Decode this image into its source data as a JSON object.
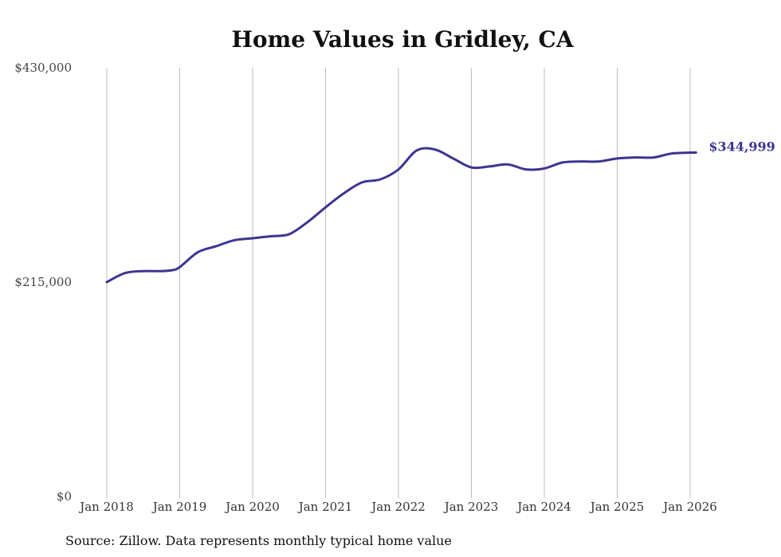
{
  "chart_data": {
    "type": "line",
    "title": "Home Values in Gridley, CA",
    "xlabel": "",
    "ylabel": "",
    "ylim": [
      0,
      430000
    ],
    "y_ticks": [
      {
        "value": 0,
        "label": "$0"
      },
      {
        "value": 215000,
        "label": "$215,000"
      },
      {
        "value": 430000,
        "label": "$430,000"
      }
    ],
    "x_ticks": [
      {
        "value": 2018,
        "label": "Jan 2018"
      },
      {
        "value": 2019,
        "label": "Jan 2019"
      },
      {
        "value": 2020,
        "label": "Jan 2020"
      },
      {
        "value": 2021,
        "label": "Jan 2021"
      },
      {
        "value": 2022,
        "label": "Jan 2022"
      },
      {
        "value": 2023,
        "label": "Jan 2023"
      },
      {
        "value": 2024,
        "label": "Jan 2024"
      },
      {
        "value": 2025,
        "label": "Jan 2025"
      },
      {
        "value": 2026,
        "label": "Jan 2026"
      }
    ],
    "xlim": [
      2018,
      2026.08
    ],
    "grid": {
      "vertical": true,
      "horizontal": false
    },
    "series": [
      {
        "name": "Typical home value",
        "color": "#3d3590",
        "x": [
          2018.0,
          2018.25,
          2018.5,
          2018.75,
          2018.9,
          2019.0,
          2019.25,
          2019.5,
          2019.75,
          2020.0,
          2020.25,
          2020.5,
          2020.75,
          2021.0,
          2021.25,
          2021.5,
          2021.75,
          2022.0,
          2022.25,
          2022.5,
          2022.75,
          2023.0,
          2023.25,
          2023.5,
          2023.75,
          2024.0,
          2024.25,
          2024.5,
          2024.75,
          2025.0,
          2025.25,
          2025.5,
          2025.75,
          2026.08
        ],
        "y": [
          215000,
          224000,
          226000,
          226000,
          227000,
          230000,
          245000,
          251000,
          257000,
          259000,
          261000,
          263000,
          275000,
          290000,
          304000,
          315000,
          318000,
          328000,
          347000,
          348000,
          339000,
          330000,
          331000,
          333000,
          328000,
          329000,
          335000,
          336000,
          336000,
          339000,
          340000,
          340000,
          344000,
          344999
        ]
      }
    ],
    "end_label": "$344,999",
    "source": "Source: Zillow. Data represents monthly typical home value"
  }
}
